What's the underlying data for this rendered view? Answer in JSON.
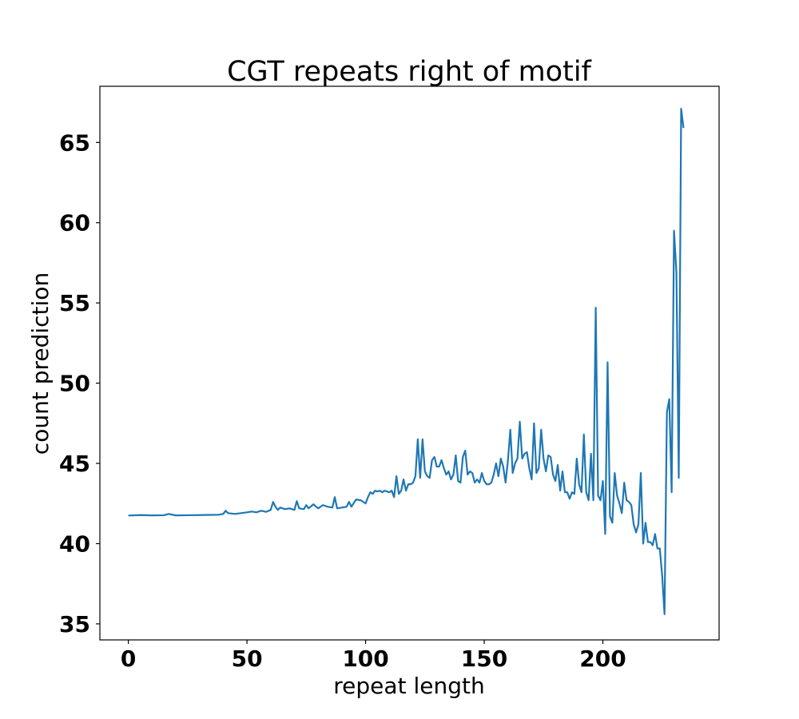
{
  "chart_data": {
    "type": "line",
    "title": "CGT repeats right of motif",
    "xlabel": "repeat length",
    "ylabel": "count prediction",
    "xlim": [
      -12,
      249
    ],
    "ylim": [
      34,
      68.5
    ],
    "xticks": [
      0,
      50,
      100,
      150,
      200
    ],
    "yticks": [
      35,
      40,
      45,
      50,
      55,
      60,
      65
    ],
    "grid": false,
    "legend": "none",
    "line_color": "#1f77b4",
    "series": [
      {
        "points": [
          [
            0,
            41.75
          ],
          [
            5,
            41.78
          ],
          [
            10,
            41.76
          ],
          [
            15,
            41.77
          ],
          [
            17,
            41.85
          ],
          [
            20,
            41.76
          ],
          [
            25,
            41.77
          ],
          [
            30,
            41.78
          ],
          [
            35,
            41.79
          ],
          [
            38,
            41.8
          ],
          [
            40,
            41.85
          ],
          [
            41,
            42.05
          ],
          [
            42,
            41.9
          ],
          [
            45,
            41.85
          ],
          [
            50,
            41.95
          ],
          [
            52,
            42.0
          ],
          [
            54,
            41.95
          ],
          [
            56,
            42.05
          ],
          [
            58,
            41.98
          ],
          [
            60,
            42.1
          ],
          [
            61,
            42.6
          ],
          [
            62,
            42.3
          ],
          [
            63,
            42.1
          ],
          [
            64,
            42.25
          ],
          [
            66,
            42.15
          ],
          [
            68,
            42.2
          ],
          [
            70,
            42.1
          ],
          [
            71,
            42.65
          ],
          [
            72,
            42.2
          ],
          [
            74,
            42.15
          ],
          [
            75,
            42.4
          ],
          [
            76,
            42.2
          ],
          [
            78,
            42.45
          ],
          [
            80,
            42.2
          ],
          [
            82,
            42.4
          ],
          [
            84,
            42.3
          ],
          [
            86,
            42.25
          ],
          [
            87,
            42.9
          ],
          [
            88,
            42.2
          ],
          [
            90,
            42.25
          ],
          [
            92,
            42.3
          ],
          [
            93,
            42.6
          ],
          [
            94,
            42.3
          ],
          [
            96,
            42.75
          ],
          [
            98,
            42.7
          ],
          [
            99,
            42.6
          ],
          [
            100,
            42.5
          ],
          [
            101,
            42.9
          ],
          [
            102,
            43.2
          ],
          [
            103,
            43.1
          ],
          [
            104,
            43.3
          ],
          [
            105,
            43.25
          ],
          [
            106,
            43.3
          ],
          [
            107,
            43.2
          ],
          [
            108,
            43.3
          ],
          [
            110,
            43.2
          ],
          [
            111,
            43.3
          ],
          [
            112,
            42.9
          ],
          [
            113,
            44.2
          ],
          [
            114,
            43.1
          ],
          [
            115,
            43.3
          ],
          [
            116,
            44.0
          ],
          [
            117,
            43.3
          ],
          [
            118,
            43.7
          ],
          [
            119,
            43.7
          ],
          [
            120,
            43.8
          ],
          [
            121,
            44.2
          ],
          [
            122,
            46.5
          ],
          [
            123,
            44.1
          ],
          [
            124,
            46.5
          ],
          [
            125,
            44.5
          ],
          [
            126,
            44.2
          ],
          [
            127,
            44.1
          ],
          [
            128,
            45.2
          ],
          [
            129,
            45.4
          ],
          [
            130,
            44.8
          ],
          [
            131,
            44.8
          ],
          [
            132,
            45.2
          ],
          [
            133,
            44.7
          ],
          [
            134,
            44.3
          ],
          [
            135,
            44.5
          ],
          [
            136,
            44.0
          ],
          [
            137,
            44.3
          ],
          [
            138,
            45.5
          ],
          [
            139,
            43.9
          ],
          [
            140,
            43.8
          ],
          [
            141,
            45.4
          ],
          [
            142,
            45.8
          ],
          [
            143,
            44.3
          ],
          [
            144,
            44.5
          ],
          [
            145,
            44.4
          ],
          [
            146,
            43.8
          ],
          [
            147,
            44.0
          ],
          [
            148,
            43.8
          ],
          [
            149,
            44.4
          ],
          [
            150,
            43.9
          ],
          [
            151,
            43.7
          ],
          [
            152,
            43.7
          ],
          [
            153,
            43.8
          ],
          [
            154,
            44.3
          ],
          [
            155,
            45.0
          ],
          [
            156,
            44.2
          ],
          [
            157,
            45.3
          ],
          [
            158,
            44.8
          ],
          [
            159,
            43.8
          ],
          [
            160,
            45.2
          ],
          [
            161,
            47.1
          ],
          [
            162,
            44.4
          ],
          [
            163,
            45.0
          ],
          [
            164,
            45.3
          ],
          [
            165,
            47.6
          ],
          [
            166,
            45.3
          ],
          [
            167,
            45.6
          ],
          [
            168,
            45.7
          ],
          [
            169,
            44.7
          ],
          [
            170,
            44.0
          ],
          [
            171,
            47.5
          ],
          [
            172,
            44.4
          ],
          [
            173,
            44.7
          ],
          [
            174,
            47.1
          ],
          [
            175,
            45.3
          ],
          [
            176,
            44.5
          ],
          [
            177,
            45.5
          ],
          [
            178,
            45.4
          ],
          [
            179,
            44.3
          ],
          [
            180,
            43.9
          ],
          [
            181,
            44.9
          ],
          [
            182,
            43.3
          ],
          [
            183,
            44.5
          ],
          [
            184,
            43.2
          ],
          [
            185,
            43.2
          ],
          [
            186,
            42.8
          ],
          [
            187,
            43.2
          ],
          [
            188,
            43.1
          ],
          [
            189,
            45.3
          ],
          [
            190,
            43.7
          ],
          [
            191,
            43.2
          ],
          [
            192,
            46.8
          ],
          [
            193,
            43.2
          ],
          [
            194,
            42.7
          ],
          [
            195,
            45.6
          ],
          [
            196,
            42.7
          ],
          [
            197,
            54.7
          ],
          [
            198,
            43.0
          ],
          [
            199,
            42.7
          ],
          [
            200,
            43.9
          ],
          [
            201,
            40.6
          ],
          [
            202,
            51.3
          ],
          [
            203,
            41.7
          ],
          [
            204,
            41.3
          ],
          [
            205,
            44.4
          ],
          [
            206,
            43.0
          ],
          [
            207,
            42.5
          ],
          [
            208,
            41.9
          ],
          [
            209,
            43.8
          ],
          [
            210,
            42.7
          ],
          [
            211,
            42.6
          ],
          [
            212,
            42.4
          ],
          [
            213,
            41.2
          ],
          [
            214,
            40.7
          ],
          [
            215,
            41.2
          ],
          [
            216,
            44.4
          ],
          [
            217,
            40.0
          ],
          [
            218,
            41.3
          ],
          [
            219,
            40.1
          ],
          [
            220,
            40.1
          ],
          [
            221,
            39.9
          ],
          [
            222,
            40.6
          ],
          [
            223,
            39.7
          ],
          [
            224,
            39.7
          ],
          [
            225,
            38.0
          ],
          [
            226,
            35.6
          ],
          [
            227,
            48.2
          ],
          [
            228,
            49.0
          ],
          [
            229,
            43.2
          ],
          [
            230,
            59.5
          ],
          [
            231,
            56.9
          ],
          [
            232,
            44.1
          ],
          [
            233,
            67.1
          ],
          [
            234,
            65.9
          ]
        ]
      }
    ]
  }
}
